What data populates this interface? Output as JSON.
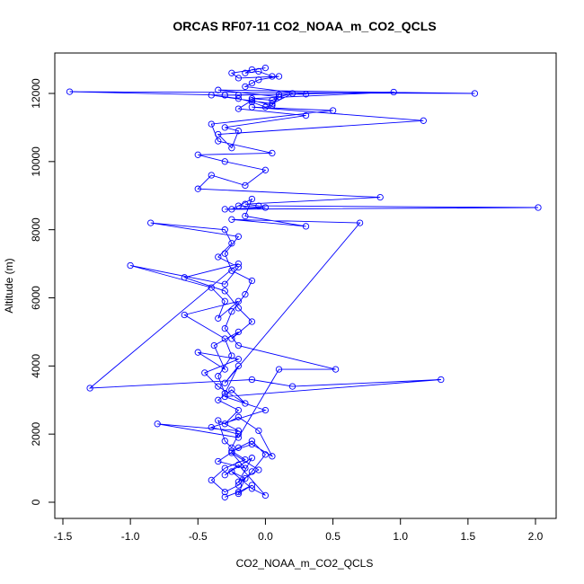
{
  "chart_data": {
    "type": "scatter",
    "title": "ORCAS RF07-11 CO2_NOAA_m_CO2_QCLS",
    "xlabel": "CO2_NOAA_m_CO2_QCLS",
    "ylabel": "Altitude (m)",
    "xlim": [
      -1.5,
      2.0
    ],
    "ylim": [
      0,
      12000
    ],
    "x_ticks": [
      "-1.5",
      "-1.0",
      "-0.5",
      "0.0",
      "0.5",
      "1.0",
      "1.5",
      "2.0"
    ],
    "y_ticks": [
      "0",
      "2000",
      "4000",
      "6000",
      "8000",
      "10000",
      "12000"
    ],
    "grid": false,
    "legend": "none",
    "colors": {
      "series": "#0000ff",
      "axes": "#000000"
    },
    "series": [
      {
        "mode": "lines+markers",
        "x": [
          -0.3,
          -0.2,
          -0.1,
          -0.2,
          -0.15,
          -0.25,
          -0.1,
          0.0,
          -0.2,
          -0.3,
          -0.1,
          -0.2,
          -0.05,
          -0.25,
          -0.15,
          -0.35,
          -0.2,
          -0.1,
          0.0,
          -0.1,
          -0.2,
          -0.3,
          -0.4,
          -0.3,
          -0.15,
          -0.25,
          -0.1,
          0.05,
          -0.05,
          -0.2,
          -0.3,
          -0.2,
          -0.35,
          -0.25,
          -0.15,
          -0.35,
          -0.45,
          -0.2,
          -0.5,
          -0.3,
          -0.38,
          -0.2,
          -0.25,
          -0.1,
          -0.2,
          -0.3,
          -0.6,
          -0.2,
          -1.3,
          -0.1,
          0.2,
          1.3,
          -0.3,
          0.0,
          -0.4,
          -0.2,
          -0.25,
          -0.3,
          -0.35,
          -0.2,
          -0.8,
          -0.2,
          0.1,
          0.52,
          -0.2,
          -0.3,
          -0.25,
          -0.15,
          -0.1,
          -0.25,
          -0.3,
          -0.2,
          -0.85,
          -0.3,
          -0.25,
          -0.35,
          -0.2,
          -0.3,
          -1.0,
          -0.4,
          -0.3,
          -0.35,
          -0.2,
          -0.6,
          -0.3,
          -0.25,
          -0.35,
          -0.3,
          -0.2,
          -0.3,
          0.7,
          -0.25,
          0.3,
          -0.15,
          -0.1,
          -0.25,
          -0.2,
          0.0,
          -0.3,
          2.02,
          -0.05,
          -0.15,
          0.85,
          -0.5,
          -0.4,
          -0.15,
          0.0,
          -0.3,
          -0.5,
          0.05,
          -0.35,
          -0.4,
          0.5,
          -0.1,
          1.17,
          -0.35,
          -0.25,
          -0.2,
          -0.3,
          0.3,
          -0.2,
          -0.1,
          0.05,
          0.1,
          0.2,
          0.05,
          -0.4,
          -0.2,
          -0.1,
          0.0,
          0.05,
          0.1,
          -0.3,
          -1.45,
          1.55,
          -0.35,
          0.1,
          0.05,
          -0.1,
          0.95,
          -0.2,
          -0.3,
          0.3,
          -0.15,
          -0.1,
          -0.05,
          0.1,
          -0.2,
          -0.25,
          0.0,
          -0.1,
          -0.15,
          -0.05,
          0.05
        ],
        "y": [
          150,
          300,
          500,
          250,
          700,
          900,
          400,
          200,
          1100,
          800,
          1300,
          600,
          950,
          1450,
          1000,
          1200,
          1600,
          1800,
          1400,
          900,
          500,
          300,
          650,
          1000,
          1250,
          1500,
          1700,
          1350,
          2100,
          2500,
          2300,
          2700,
          3000,
          3300,
          2900,
          3400,
          3800,
          4200,
          4400,
          3900,
          4600,
          5000,
          4800,
          5300,
          5700,
          6200,
          6600,
          7000,
          3350,
          3600,
          3400,
          3600,
          3100,
          2700,
          2200,
          2000,
          1600,
          1800,
          2400,
          2100,
          2300,
          1900,
          3900,
          3900,
          4600,
          5100,
          5600,
          6100,
          6500,
          6800,
          7300,
          7800,
          8200,
          8000,
          7600,
          7200,
          6900,
          6400,
          6950,
          6300,
          5900,
          5400,
          5900,
          5500,
          4800,
          4300,
          3700,
          3200,
          4000,
          3500,
          8200,
          8300,
          8100,
          8400,
          8900,
          8600,
          8700,
          8650,
          8600,
          8650,
          8700,
          8750,
          8950,
          9200,
          9600,
          9300,
          9750,
          10000,
          10200,
          10250,
          10600,
          11100,
          11500,
          11600,
          11200,
          10800,
          10400,
          10900,
          11000,
          11350,
          11550,
          11800,
          11650,
          11900,
          12000,
          11700,
          11950,
          11850,
          11750,
          11600,
          11650,
          11970,
          11950,
          12050,
          12000,
          12100,
          11900,
          11800,
          11850,
          12040,
          11950,
          11950,
          11980,
          12200,
          12300,
          12400,
          12500,
          12450,
          12600,
          12750,
          12700,
          12600,
          12650,
          12500
        ]
      }
    ]
  }
}
